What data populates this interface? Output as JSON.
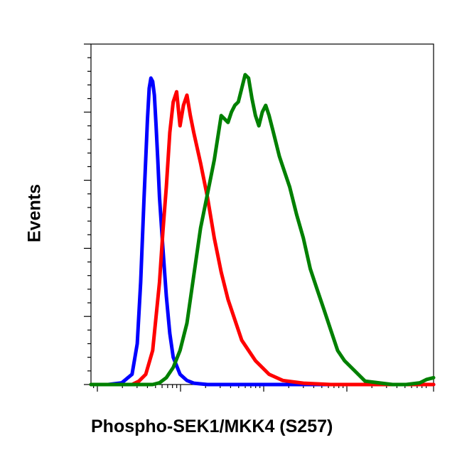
{
  "chart_data": {
    "type": "line",
    "title": "",
    "xlabel": "Phospho-SEK1/MKK4 (S257)",
    "ylabel": "Events",
    "xscale": "log",
    "xlim": [
      0,
      1
    ],
    "ylim": [
      0,
      1
    ],
    "grid": false,
    "legend": "none",
    "series": [
      {
        "color": "#0000ff",
        "x": [
          0.0,
          0.05,
          0.09,
          0.12,
          0.135,
          0.145,
          0.155,
          0.165,
          0.17,
          0.175,
          0.18,
          0.185,
          0.19,
          0.195,
          0.2,
          0.21,
          0.22,
          0.23,
          0.24,
          0.26,
          0.28,
          0.3,
          0.34,
          0.4,
          1.0
        ],
        "y": [
          0.0,
          0.0,
          0.005,
          0.03,
          0.12,
          0.3,
          0.55,
          0.78,
          0.87,
          0.9,
          0.89,
          0.85,
          0.76,
          0.66,
          0.55,
          0.4,
          0.26,
          0.15,
          0.08,
          0.03,
          0.012,
          0.004,
          0.0,
          0.0,
          0.0
        ]
      },
      {
        "color": "#ff0000",
        "x": [
          0.0,
          0.12,
          0.14,
          0.16,
          0.18,
          0.2,
          0.21,
          0.22,
          0.23,
          0.24,
          0.25,
          0.26,
          0.27,
          0.28,
          0.29,
          0.3,
          0.32,
          0.34,
          0.36,
          0.38,
          0.4,
          0.44,
          0.48,
          0.52,
          0.56,
          0.62,
          0.7,
          1.0
        ],
        "y": [
          0.0,
          0.0,
          0.01,
          0.03,
          0.1,
          0.3,
          0.45,
          0.58,
          0.74,
          0.83,
          0.86,
          0.76,
          0.82,
          0.85,
          0.79,
          0.74,
          0.65,
          0.55,
          0.43,
          0.33,
          0.25,
          0.13,
          0.07,
          0.03,
          0.012,
          0.004,
          0.0,
          0.0
        ]
      },
      {
        "color": "#008000",
        "x": [
          0.0,
          0.18,
          0.2,
          0.22,
          0.24,
          0.26,
          0.28,
          0.3,
          0.32,
          0.34,
          0.36,
          0.38,
          0.4,
          0.41,
          0.42,
          0.43,
          0.44,
          0.45,
          0.46,
          0.47,
          0.48,
          0.49,
          0.5,
          0.51,
          0.52,
          0.53,
          0.54,
          0.55,
          0.56,
          0.58,
          0.6,
          0.62,
          0.64,
          0.66,
          0.68,
          0.7,
          0.72,
          0.74,
          0.76,
          0.78,
          0.8,
          0.84,
          0.88,
          0.92,
          0.96,
          0.98,
          1.0
        ],
        "y": [
          0.0,
          0.0,
          0.005,
          0.02,
          0.05,
          0.1,
          0.18,
          0.32,
          0.46,
          0.56,
          0.66,
          0.79,
          0.77,
          0.8,
          0.82,
          0.83,
          0.87,
          0.91,
          0.9,
          0.84,
          0.79,
          0.76,
          0.8,
          0.82,
          0.79,
          0.75,
          0.71,
          0.67,
          0.64,
          0.58,
          0.5,
          0.43,
          0.34,
          0.28,
          0.22,
          0.16,
          0.1,
          0.07,
          0.05,
          0.03,
          0.01,
          0.005,
          0.0,
          0.0,
          0.005,
          0.015,
          0.02
        ]
      }
    ]
  }
}
